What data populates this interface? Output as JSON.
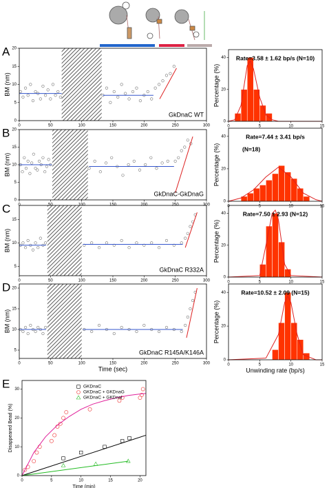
{
  "chart_data": [
    {
      "type": "scatter",
      "panel": "A",
      "xlim": [
        0,
        300
      ],
      "ylim": [
        0,
        20
      ],
      "xticks": [
        0,
        50,
        100,
        150,
        200,
        250,
        300
      ],
      "yticks": [
        0,
        5,
        10,
        15,
        20
      ],
      "ylabel": "BM (nm)",
      "label": "GkDnaC WT",
      "shaded_x": [
        68,
        132
      ],
      "series": [
        {
          "color": "#777777",
          "marker": "circle",
          "x": [
            2,
            6,
            10,
            14,
            18,
            22,
            26,
            30,
            34,
            38,
            42,
            46,
            50,
            54,
            58,
            62,
            66,
            134,
            140,
            146,
            152,
            158,
            164,
            170,
            176,
            182,
            188,
            194,
            200,
            206,
            212,
            218,
            224,
            230,
            236,
            242,
            248
          ],
          "values": [
            8,
            6.5,
            9,
            7,
            10,
            5.5,
            8,
            7.5,
            6,
            9.5,
            7,
            8.5,
            6,
            10,
            7,
            8,
            6.5,
            7,
            9,
            5,
            8,
            6.5,
            10,
            7.5,
            6,
            8,
            9,
            5.5,
            7,
            8,
            6,
            9,
            10,
            11,
            12.5,
            13,
            15
          ]
        }
      ],
      "fits": [
        {
          "color": "#3355cc",
          "x": [
            0,
            68
          ],
          "values": [
            7.5,
            7.5
          ]
        },
        {
          "color": "#3355cc",
          "x": [
            134,
            215
          ],
          "values": [
            7,
            7
          ]
        },
        {
          "color": "#dd2222",
          "x": [
            225,
            252
          ],
          "values": [
            6,
            14.5
          ]
        }
      ]
    },
    {
      "type": "histogram",
      "xlim": [
        0,
        15
      ],
      "ylim": [
        0,
        45
      ],
      "xticks": [
        0,
        5,
        10,
        15
      ],
      "yticks": [
        0,
        20,
        40
      ],
      "ylabel": "Percentage (%)",
      "annotation": [
        "Rate=3.58 ± 1.62 bp/s (N=10)"
      ],
      "color": "#ff3300",
      "bins": [
        1,
        2,
        3,
        4,
        5,
        6,
        7
      ],
      "values": [
        5,
        20,
        40,
        20,
        10,
        5
      ],
      "fits": [
        {
          "color": "#dd2222",
          "x": [
            0,
            1,
            2,
            3,
            3.5,
            4,
            5,
            6,
            7,
            8,
            15
          ],
          "values": [
            0,
            1,
            10,
            35,
            38,
            33,
            15,
            4,
            1,
            0,
            0
          ]
        }
      ]
    },
    {
      "type": "scatter",
      "panel": "B",
      "xlim": [
        0,
        300
      ],
      "ylim": [
        0,
        20
      ],
      "xticks": [
        0,
        50,
        100,
        150,
        200,
        250,
        300
      ],
      "yticks": [
        0,
        5,
        10,
        15,
        20
      ],
      "ylabel": "BM (nm)",
      "label": "GkDnaC-GkDnaG",
      "shaded_x": [
        53,
        110
      ],
      "series": [
        {
          "color": "#777777",
          "marker": "circle",
          "x": [
            2,
            5,
            8,
            11,
            14,
            17,
            20,
            23,
            26,
            29,
            32,
            35,
            38,
            41,
            44,
            47,
            50,
            112,
            121,
            130,
            139,
            148,
            157,
            166,
            175,
            184,
            193,
            202,
            211,
            220,
            229,
            238,
            250,
            255,
            260,
            265,
            270,
            275
          ],
          "values": [
            10,
            8,
            12,
            9,
            11,
            7.5,
            10.5,
            13,
            9,
            8.5,
            11,
            10,
            12,
            8,
            9.5,
            11.5,
            10,
            9,
            11,
            8,
            10.5,
            12,
            9.5,
            7,
            10,
            11,
            8.5,
            10,
            12,
            9,
            10.5,
            11,
            11,
            12,
            14,
            15,
            17,
            16
          ]
        }
      ],
      "fits": [
        {
          "color": "#3355cc",
          "x": [
            0,
            52
          ],
          "values": [
            10,
            10
          ]
        },
        {
          "color": "#3355cc",
          "x": [
            112,
            248
          ],
          "values": [
            9.5,
            9.5
          ]
        },
        {
          "color": "#dd2222",
          "x": [
            250,
            278
          ],
          "values": [
            2,
            18
          ]
        }
      ]
    },
    {
      "type": "histogram",
      "xlim": [
        0,
        15
      ],
      "ylim": [
        0,
        45
      ],
      "xticks": [
        0,
        5,
        10,
        15
      ],
      "yticks": [
        0,
        20,
        40
      ],
      "ylabel": "Percentage (%)",
      "annotation": [
        "Rate=7.44 ± 3.41 bp/s",
        "(N=18)"
      ],
      "color": "#ff3300",
      "bins": [
        2,
        3,
        4,
        5,
        6,
        7,
        8,
        9,
        10,
        11,
        12,
        13
      ],
      "values": [
        3,
        5,
        8,
        10,
        13,
        17,
        22,
        18,
        14,
        8,
        3
      ],
      "fits": [
        {
          "color": "#dd2222",
          "x": [
            0,
            2,
            4,
            6,
            8,
            10,
            12,
            14,
            15
          ],
          "values": [
            0,
            2,
            7,
            15,
            21,
            15,
            5,
            1,
            0
          ]
        }
      ]
    },
    {
      "type": "scatter",
      "panel": "C",
      "xlim": [
        0,
        300
      ],
      "ylim": [
        3,
        18
      ],
      "xticks": [
        0,
        50,
        100,
        150,
        200,
        250,
        300
      ],
      "yticks": [
        5,
        10,
        15
      ],
      "ylabel": "BM (nm)",
      "label": "GkDnaC R332A",
      "shaded_x": [
        45,
        100
      ],
      "series": [
        {
          "color": "#777777",
          "marker": "circle",
          "x": [
            2,
            6,
            10,
            14,
            18,
            22,
            26,
            30,
            34,
            38,
            42,
            104,
            116,
            128,
            140,
            152,
            164,
            176,
            188,
            200,
            212,
            224,
            236,
            248,
            260,
            266,
            270,
            274,
            278,
            282
          ],
          "values": [
            9.5,
            10,
            9,
            10.5,
            9.5,
            8.5,
            10,
            9,
            11,
            9.5,
            10,
            9.5,
            10,
            9,
            10,
            9.5,
            10.5,
            9,
            10,
            9.5,
            10,
            9,
            10.5,
            9.5,
            10,
            11,
            12,
            13.5,
            14.5,
            16
          ]
        }
      ],
      "fits": [
        {
          "color": "#3355cc",
          "x": [
            0,
            43
          ],
          "values": [
            9.5,
            9.5
          ]
        },
        {
          "color": "#3355cc",
          "x": [
            102,
            262
          ],
          "values": [
            9.7,
            9.7
          ]
        },
        {
          "color": "#dd2222",
          "x": [
            266,
            285
          ],
          "values": [
            9,
            16.5
          ]
        }
      ]
    },
    {
      "type": "histogram",
      "xlim": [
        0,
        15
      ],
      "ylim": [
        0,
        45
      ],
      "xticks": [
        0,
        5,
        10,
        15
      ],
      "yticks": [
        0,
        20,
        40
      ],
      "ylabel": "Percentage (%)",
      "annotation": [
        "Rate=7.50 ± 2.93 (N=12)"
      ],
      "color": "#ff3300",
      "bins": [
        5,
        6,
        7,
        8,
        9,
        10
      ],
      "values": [
        8,
        32,
        40,
        22,
        5
      ],
      "fits": [
        {
          "color": "#dd2222",
          "x": [
            0,
            5,
            6,
            7,
            7.5,
            8,
            9,
            10,
            15
          ],
          "values": [
            0,
            1,
            20,
            40,
            42,
            36,
            8,
            1,
            0
          ]
        }
      ]
    },
    {
      "type": "scatter",
      "panel": "D",
      "xlim": [
        0,
        300
      ],
      "ylim": [
        3,
        21
      ],
      "xticks": [
        0,
        50,
        100,
        150,
        200,
        250,
        300
      ],
      "yticks": [
        5,
        10,
        15,
        20
      ],
      "ylabel": "BM (nm)",
      "xlabel": "Time (sec)",
      "label": "GkDnaC R145A/K146A",
      "shaded_x": [
        45,
        100
      ],
      "series": [
        {
          "color": "#777777",
          "marker": "circle",
          "x": [
            2,
            6,
            10,
            14,
            18,
            22,
            26,
            30,
            34,
            38,
            42,
            104,
            116,
            128,
            140,
            152,
            164,
            176,
            188,
            200,
            212,
            224,
            236,
            248,
            260,
            266,
            270,
            274,
            278,
            282
          ],
          "values": [
            10,
            9.5,
            10.5,
            9,
            11,
            10,
            9.5,
            10.5,
            10,
            9,
            10.5,
            10,
            9.5,
            11,
            10,
            9,
            10.5,
            10,
            9.5,
            11,
            10,
            9.5,
            10.5,
            10,
            9.5,
            11,
            13,
            15,
            17,
            19
          ]
        }
      ],
      "fits": [
        {
          "color": "#3355cc",
          "x": [
            0,
            43
          ],
          "values": [
            10,
            10
          ]
        },
        {
          "color": "#3355cc",
          "x": [
            102,
            262
          ],
          "values": [
            10,
            10
          ]
        },
        {
          "color": "#dd2222",
          "x": [
            268,
            285
          ],
          "values": [
            8,
            20
          ]
        }
      ]
    },
    {
      "type": "histogram",
      "xlim": [
        0,
        15
      ],
      "ylim": [
        0,
        45
      ],
      "xticks": [
        0,
        5,
        10,
        15
      ],
      "yticks": [
        0,
        20,
        40
      ],
      "ylabel": "Percentage (%)",
      "xlabel": "Unwinding rate (bp/s)",
      "annotation": [
        "Rate=10.52 ± 2.09 (N=15)"
      ],
      "color": "#ff3300",
      "bins": [
        7,
        8,
        9,
        10,
        11,
        12,
        13
      ],
      "values": [
        6,
        22,
        40,
        22,
        12,
        4
      ],
      "fits": [
        {
          "color": "#dd2222",
          "x": [
            0,
            6,
            8,
            9,
            9.5,
            10,
            11,
            12,
            14,
            15
          ],
          "values": [
            0,
            1,
            15,
            34,
            38,
            34,
            15,
            3,
            0,
            0
          ]
        }
      ]
    },
    {
      "type": "scatter",
      "panel": "E",
      "xlim": [
        0,
        21
      ],
      "ylim": [
        0,
        33
      ],
      "xticks": [
        0,
        5,
        10,
        15,
        20
      ],
      "yticks": [
        0,
        10,
        20,
        30
      ],
      "xlabel": "Time (min)",
      "ylabel": "Disappeared Bead (%)",
      "legend": "upper left",
      "series": [
        {
          "name": "GKDnaC",
          "color": "#000000",
          "marker": "square",
          "x": [
            7,
            10,
            14,
            17,
            18.2
          ],
          "values": [
            6,
            8,
            10,
            12,
            13
          ]
        },
        {
          "name": "GKDnaC + GKDnaG",
          "color": "#ee3333",
          "marker": "circle",
          "x": [
            0.5,
            1,
            2,
            2.5,
            3,
            5,
            5.5,
            6,
            6.5,
            7,
            7.5,
            11.5,
            16.5,
            17,
            20,
            20.3,
            20.5
          ],
          "values": [
            2,
            3,
            5,
            8,
            10,
            12,
            14,
            17,
            18,
            20,
            22,
            23,
            26,
            27,
            27,
            28,
            30
          ]
        },
        {
          "name": "GKDnaC + GKDnaI",
          "color": "#22bb22",
          "marker": "triangle",
          "x": [
            7,
            12.5,
            18
          ],
          "values": [
            3.5,
            4,
            5
          ]
        }
      ],
      "fits": [
        {
          "color": "#000000",
          "x": [
            0,
            21
          ],
          "values": [
            0,
            14
          ]
        },
        {
          "color": "#e0209a",
          "x": [
            0,
            2,
            4,
            6,
            8,
            10,
            12,
            14,
            16,
            18,
            20,
            21
          ],
          "values": [
            0,
            8,
            13.5,
            17.5,
            20.5,
            23,
            24.8,
            26,
            27,
            27.8,
            28.3,
            28.5
          ]
        },
        {
          "color": "#22bb22",
          "x": [
            0,
            18
          ],
          "values": [
            0,
            5
          ]
        }
      ]
    }
  ]
}
